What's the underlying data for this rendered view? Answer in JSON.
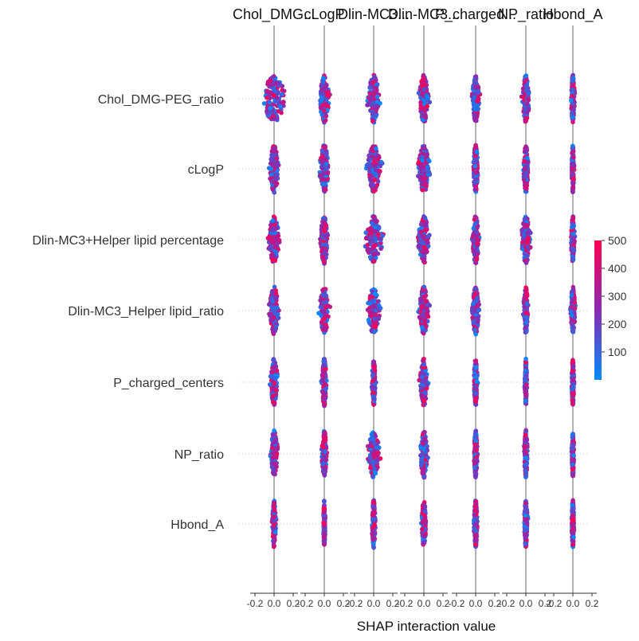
{
  "chart_data": {
    "type": "scatter",
    "kind": "shap_interaction_summary_beeswarm",
    "features": [
      "Chol_DMG-PEG_ratio",
      "cLogP",
      "Dlin-MC3+Helper lipid percentage",
      "Dlin-MC3_Helper lipid_ratio",
      "P_charged_centers",
      "NP_ratio",
      "Hbond_A"
    ],
    "column_titles": [
      "Chol_DMG...",
      "cLogP",
      "Dlin-MC3...",
      "Dlin-MC3...",
      "P_charged...",
      "NP_ratio",
      "Hbond_A"
    ],
    "xlabel": "SHAP interaction value",
    "xlim": [
      -0.25,
      0.25
    ],
    "x_ticks": [
      -0.2,
      0.0,
      0.2
    ],
    "x_tick_labels": [
      "-0.2",
      "0.0",
      "0.2"
    ],
    "colorbar": {
      "range": [
        0,
        500
      ],
      "ticks": [
        100,
        200,
        300,
        400,
        500
      ],
      "tick_labels": [
        "100",
        "200",
        "300",
        "400",
        "500"
      ],
      "low_color": "#008bfb",
      "mid_color": "#8a2ab2",
      "high_color": "#ff0052"
    },
    "cells_spread": [
      [
        0.1,
        0.04,
        0.05,
        0.04,
        0.03,
        0.03,
        0.015
      ],
      [
        0.04,
        0.04,
        0.06,
        0.05,
        0.02,
        0.02,
        0.01
      ],
      [
        0.05,
        0.035,
        0.07,
        0.05,
        0.03,
        0.04,
        0.015
      ],
      [
        0.04,
        0.04,
        0.05,
        0.04,
        0.03,
        0.02,
        0.02
      ],
      [
        0.03,
        0.02,
        0.015,
        0.03,
        0.015,
        0.01,
        0.01
      ],
      [
        0.03,
        0.02,
        0.05,
        0.03,
        0.015,
        0.015,
        0.01
      ],
      [
        0.015,
        0.008,
        0.015,
        0.02,
        0.015,
        0.015,
        0.01
      ]
    ],
    "grid": false
  }
}
